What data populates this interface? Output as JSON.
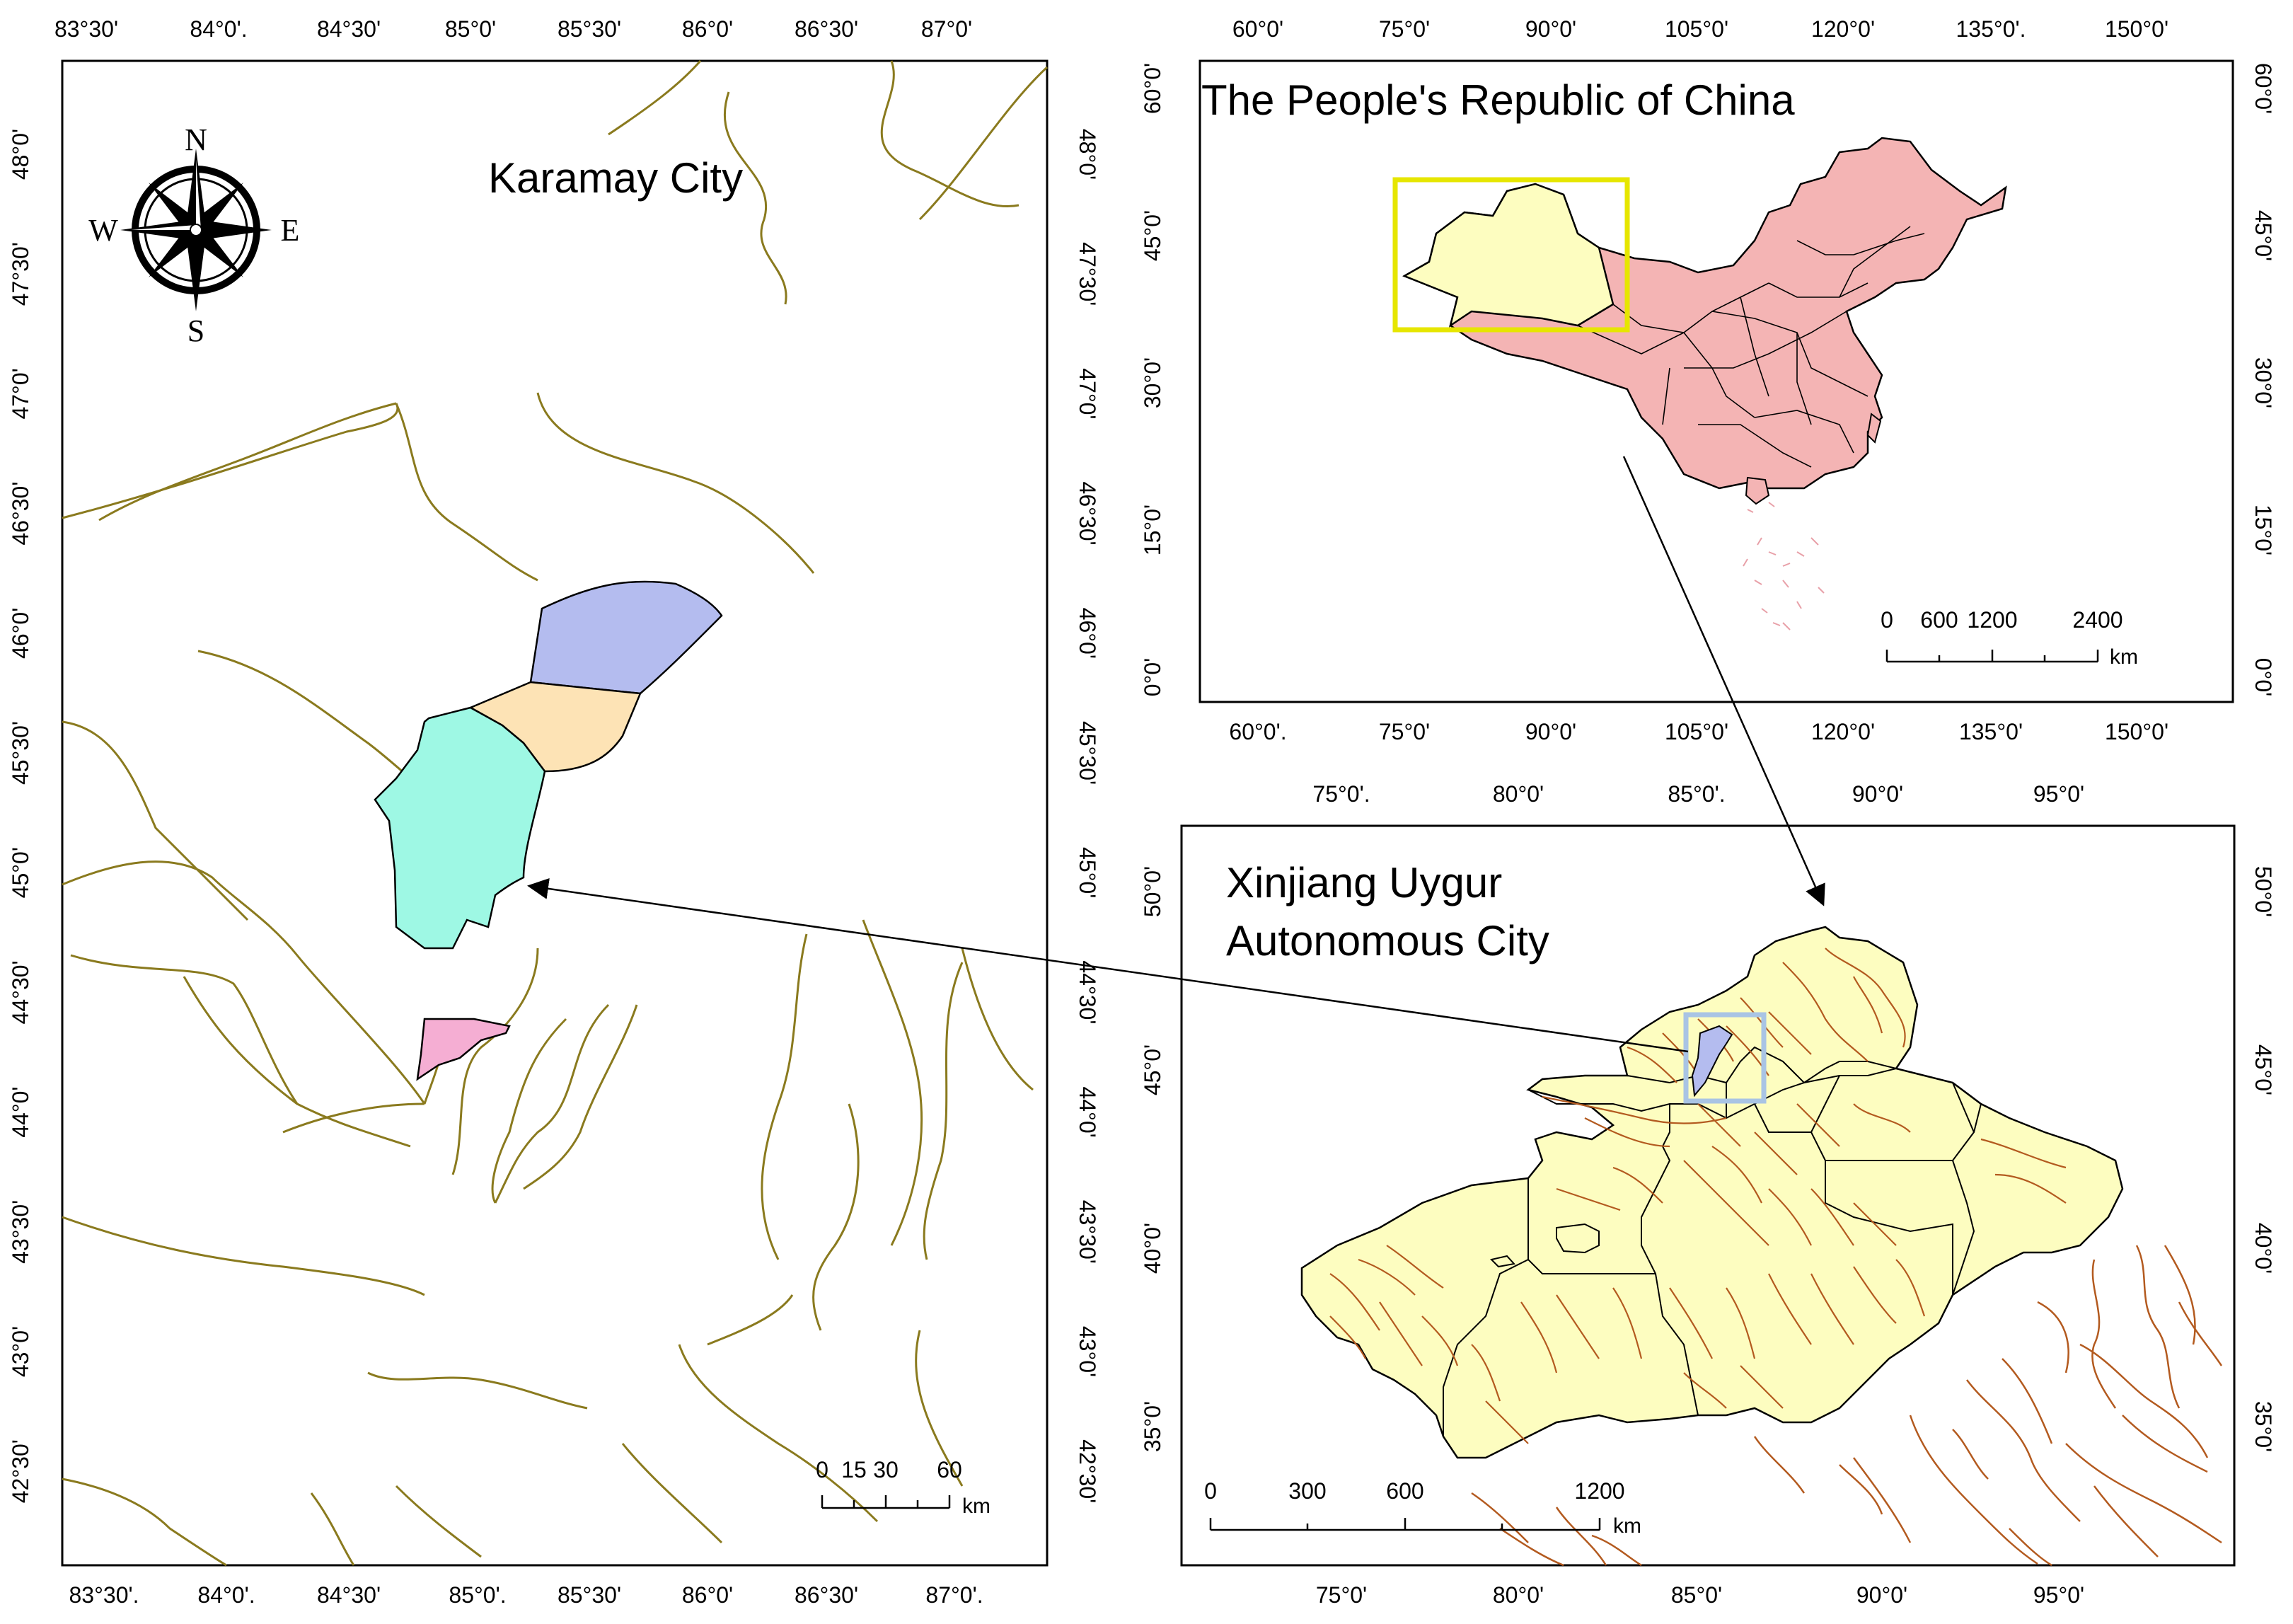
{
  "left_map": {
    "title": "Karamay City",
    "top_ticks": [
      "83°30'",
      "84°0'.",
      "84°30'",
      "85°0'",
      "85°30'",
      "86°0'",
      "86°30'",
      "87°0'"
    ],
    "bottom_ticks": [
      "83°30'.",
      "84°0'.",
      "84°30'",
      "85°0'.",
      "85°30'",
      "86°0'",
      "86°30'",
      "87°0'."
    ],
    "side_ticks": [
      "48°0'",
      "47°30'",
      "47°0'",
      "46°30'",
      "46°0'",
      "45°30'",
      "45°0'",
      "44°30'",
      "44°0'",
      "43°30'",
      "43°0'",
      "42°30'"
    ],
    "compass": {
      "n": "N",
      "s": "S",
      "e": "E",
      "w": "W",
      "icon": "compass-rose-icon"
    },
    "scale": {
      "labels": [
        "0",
        "15",
        "30",
        "60"
      ],
      "unit": "km"
    },
    "district_colors": [
      "#b4bcef",
      "#fde3b5",
      "#9ef8e4",
      "#f5aed3"
    ],
    "river_color": "#8a7a1e"
  },
  "china_map": {
    "title": "The People's Republic of China",
    "top_ticks": [
      "60°0'",
      "75°0'",
      "90°0'",
      "105°0'",
      "120°0'",
      "135°0'.",
      "150°0'"
    ],
    "bottom_ticks": [
      "60°0'.",
      "75°0'",
      "90°0'",
      "105°0'",
      "120°0'",
      "135°0'",
      "150°0'"
    ],
    "side_ticks": [
      "60°0'",
      "45°0'",
      "30°0'",
      "15°0'",
      "0°0'"
    ],
    "scale": {
      "labels": [
        "0",
        "600",
        "1200",
        "2400"
      ],
      "unit": "km"
    },
    "fill_color": "#f4b4b4",
    "xinjiang_color": "#fdfdc0",
    "highlight_color": "#e6e600"
  },
  "xinjiang_map": {
    "title_line1": "Xinjiang Uygur",
    "title_line2": "Autonomous City",
    "top_ticks": [
      "75°0'.",
      "80°0'",
      "85°0'.",
      "90°0'",
      "95°0'"
    ],
    "bottom_ticks": [
      "75°0'",
      "80°0'",
      "85°0'",
      "90°0'",
      "95°0'"
    ],
    "side_ticks": [
      "50°0'",
      "45°0'",
      "40°0'",
      "35°0'"
    ],
    "scale": {
      "labels": [
        "0",
        "300",
        "600",
        "1200"
      ],
      "unit": "km"
    },
    "fill_color": "#fdfdc0",
    "river_color": "#b35a1f",
    "highlight_color": "#a9c4e4"
  }
}
